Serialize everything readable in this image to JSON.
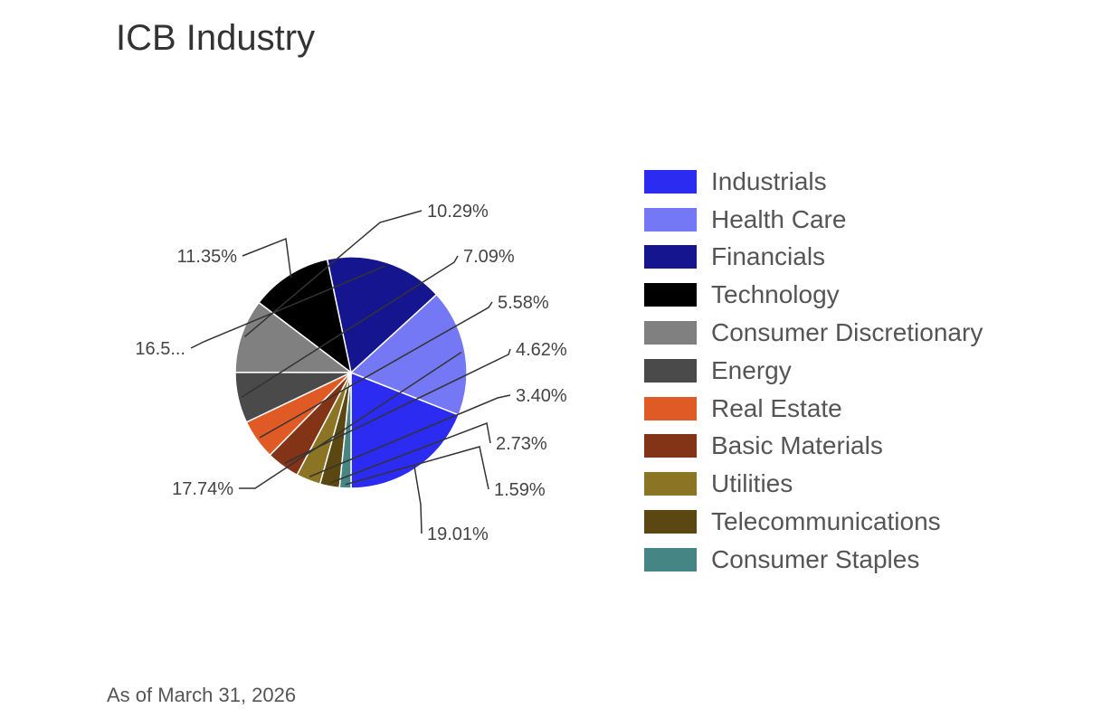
{
  "footnote": "As of March 31, 2026",
  "chart_data": {
    "type": "pie",
    "title": "ICB Industry",
    "legend_position": "right",
    "slices": [
      {
        "name": "Industrials",
        "value": 19.01,
        "label": "19.01%",
        "color": "#2b2bf2"
      },
      {
        "name": "Health Care",
        "value": 17.74,
        "label": "17.74%",
        "color": "#7478f5"
      },
      {
        "name": "Financials",
        "value": 16.5,
        "label": "16.5...",
        "color": "#15168f"
      },
      {
        "name": "Technology",
        "value": 11.35,
        "label": "11.35%",
        "color": "#000000"
      },
      {
        "name": "Consumer Discretionary",
        "value": 10.29,
        "label": "10.29%",
        "color": "#808080"
      },
      {
        "name": "Energy",
        "value": 7.09,
        "label": "7.09%",
        "color": "#4a4a4a"
      },
      {
        "name": "Real Estate",
        "value": 5.58,
        "label": "5.58%",
        "color": "#e05a25"
      },
      {
        "name": "Basic Materials",
        "value": 4.62,
        "label": "4.62%",
        "color": "#833316"
      },
      {
        "name": "Utilities",
        "value": 3.4,
        "label": "3.40%",
        "color": "#8b7424"
      },
      {
        "name": "Telecommunications",
        "value": 2.73,
        "label": "2.73%",
        "color": "#5b4712"
      },
      {
        "name": "Consumer Staples",
        "value": 1.59,
        "label": "1.59%",
        "color": "#458584"
      }
    ]
  }
}
